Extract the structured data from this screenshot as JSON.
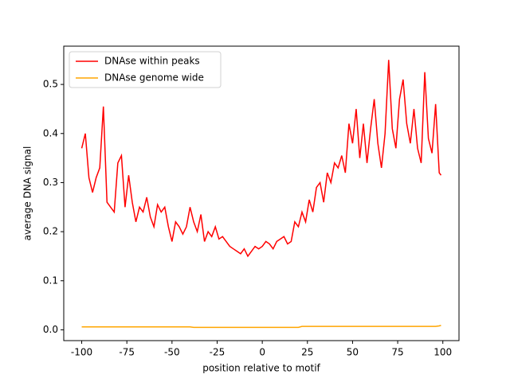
{
  "chart_data": {
    "type": "line",
    "xlabel": "position relative to motif",
    "ylabel": "average DNA signal",
    "x": [
      -100,
      -98,
      -96,
      -94,
      -92,
      -90,
      -88,
      -86,
      -84,
      -82,
      -80,
      -78,
      -76,
      -74,
      -72,
      -70,
      -68,
      -66,
      -64,
      -62,
      -60,
      -58,
      -56,
      -54,
      -52,
      -50,
      -48,
      -46,
      -44,
      -42,
      -40,
      -38,
      -36,
      -34,
      -32,
      -30,
      -28,
      -26,
      -24,
      -22,
      -20,
      -18,
      -16,
      -14,
      -12,
      -10,
      -8,
      -6,
      -4,
      -2,
      0,
      2,
      4,
      6,
      8,
      10,
      12,
      14,
      16,
      18,
      20,
      22,
      24,
      26,
      28,
      30,
      32,
      34,
      36,
      38,
      40,
      42,
      44,
      46,
      48,
      50,
      52,
      54,
      56,
      58,
      60,
      62,
      64,
      66,
      68,
      70,
      72,
      74,
      76,
      78,
      80,
      82,
      84,
      86,
      88,
      90,
      92,
      94,
      96,
      98,
      99
    ],
    "series": [
      {
        "name": "DNAse within peaks",
        "color": "#ff0000",
        "values": [
          0.37,
          0.4,
          0.31,
          0.28,
          0.31,
          0.33,
          0.455,
          0.26,
          0.25,
          0.24,
          0.34,
          0.355,
          0.25,
          0.315,
          0.26,
          0.22,
          0.25,
          0.24,
          0.27,
          0.23,
          0.21,
          0.255,
          0.24,
          0.25,
          0.21,
          0.18,
          0.22,
          0.21,
          0.195,
          0.21,
          0.25,
          0.22,
          0.2,
          0.235,
          0.18,
          0.2,
          0.19,
          0.21,
          0.185,
          0.19,
          0.18,
          0.17,
          0.165,
          0.16,
          0.155,
          0.165,
          0.15,
          0.16,
          0.17,
          0.165,
          0.17,
          0.18,
          0.175,
          0.165,
          0.18,
          0.185,
          0.19,
          0.175,
          0.18,
          0.22,
          0.21,
          0.24,
          0.22,
          0.265,
          0.24,
          0.29,
          0.3,
          0.26,
          0.32,
          0.3,
          0.34,
          0.33,
          0.355,
          0.32,
          0.42,
          0.38,
          0.45,
          0.35,
          0.42,
          0.34,
          0.41,
          0.47,
          0.38,
          0.33,
          0.4,
          0.55,
          0.41,
          0.37,
          0.47,
          0.51,
          0.42,
          0.38,
          0.45,
          0.37,
          0.34,
          0.525,
          0.39,
          0.36,
          0.46,
          0.32,
          0.315
        ]
      },
      {
        "name": "DNAse genome wide",
        "color": "#ffa500",
        "values": [
          0.006,
          0.006,
          0.006,
          0.006,
          0.006,
          0.006,
          0.006,
          0.006,
          0.006,
          0.006,
          0.006,
          0.006,
          0.006,
          0.006,
          0.006,
          0.006,
          0.006,
          0.006,
          0.006,
          0.006,
          0.006,
          0.006,
          0.006,
          0.006,
          0.006,
          0.006,
          0.006,
          0.006,
          0.006,
          0.006,
          0.006,
          0.005,
          0.005,
          0.005,
          0.005,
          0.005,
          0.005,
          0.005,
          0.005,
          0.005,
          0.005,
          0.005,
          0.005,
          0.005,
          0.005,
          0.005,
          0.005,
          0.005,
          0.005,
          0.005,
          0.005,
          0.005,
          0.005,
          0.005,
          0.005,
          0.005,
          0.005,
          0.005,
          0.005,
          0.005,
          0.005,
          0.007,
          0.007,
          0.007,
          0.007,
          0.007,
          0.007,
          0.007,
          0.007,
          0.007,
          0.007,
          0.007,
          0.007,
          0.007,
          0.007,
          0.007,
          0.007,
          0.007,
          0.007,
          0.007,
          0.007,
          0.007,
          0.007,
          0.007,
          0.007,
          0.007,
          0.007,
          0.007,
          0.007,
          0.007,
          0.007,
          0.007,
          0.007,
          0.007,
          0.007,
          0.007,
          0.007,
          0.007,
          0.007,
          0.008,
          0.009
        ]
      }
    ],
    "xlim": [
      -109.95,
      108.95
    ],
    "ylim": [
      -0.022,
      0.578
    ],
    "xticks": [
      -100,
      -75,
      -50,
      -25,
      0,
      25,
      50,
      75,
      100
    ],
    "yticks": [
      {
        "value": 0,
        "label": "0.0"
      },
      0.1,
      0.2,
      0.3,
      0.4,
      0.5
    ],
    "legend": "upper left"
  }
}
